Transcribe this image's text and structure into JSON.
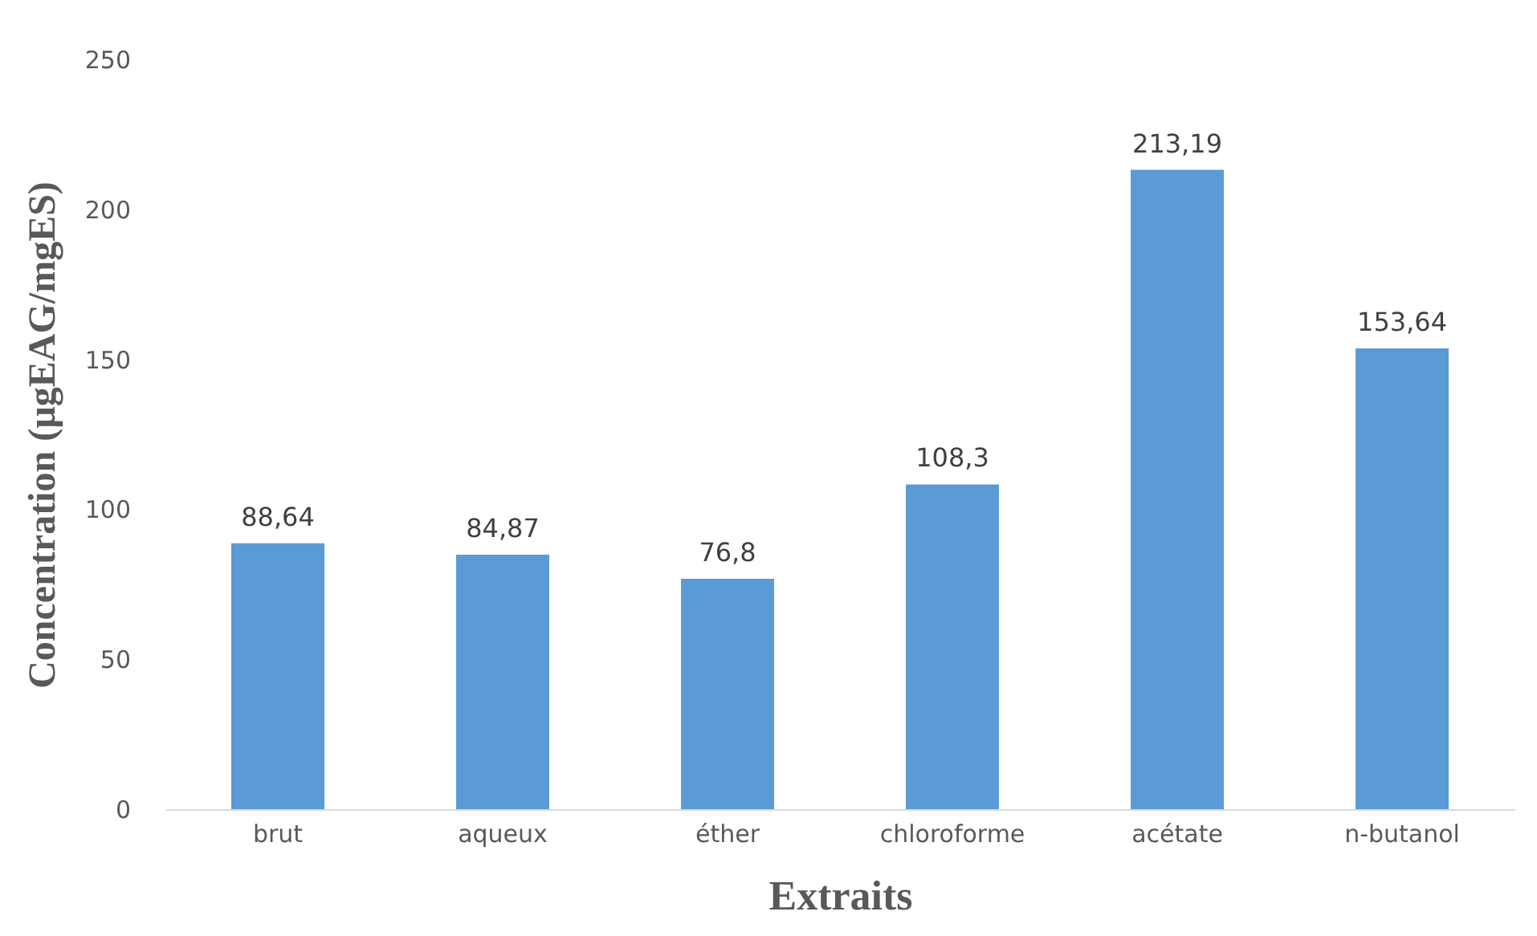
{
  "chart_data": {
    "type": "bar",
    "xlabel": "Extraits",
    "ylabel": "Concentration (µgEAG/mgES)",
    "categories": [
      "brut",
      "aqueux",
      "éther",
      "chloroforme",
      "acétate",
      "n-butanol"
    ],
    "values": [
      88.64,
      84.87,
      76.8,
      108.3,
      213.19,
      153.64
    ],
    "value_labels": [
      "88,64",
      "84,87",
      "76,8",
      "108,3",
      "213,19",
      "153,64"
    ],
    "color": "#5b9bd5",
    "ylim": [
      0,
      250
    ],
    "yticks": [
      0,
      50,
      100,
      150,
      200,
      250
    ],
    "grid": false
  }
}
